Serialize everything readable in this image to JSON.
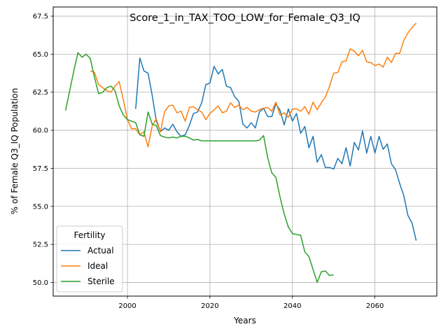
{
  "chart_data": {
    "type": "line",
    "title": "Score_1_in_TAX_TOO_LOW_for_Female_Q3_IQ",
    "xlabel": "Years",
    "ylabel": "% of Female Q3_IQ Population",
    "xlim": [
      1982,
      2075
    ],
    "ylim": [
      49.1,
      68.1
    ],
    "x_ticks": [
      2000,
      2020,
      2040,
      2060
    ],
    "y_ticks": [
      50.0,
      52.5,
      55.0,
      57.5,
      60.0,
      62.5,
      65.0,
      67.5
    ],
    "grid": true,
    "legend": {
      "title": "Fertility",
      "placement": "bottom-left"
    },
    "series": [
      {
        "name": "Actual",
        "color": "#1f77b4",
        "x": [
          2002,
          2003,
          2004,
          2005,
          2006,
          2007,
          2008,
          2009,
          2010,
          2011,
          2012,
          2013,
          2014,
          2015,
          2016,
          2017,
          2018,
          2019,
          2020,
          2021,
          2022,
          2023,
          2024,
          2025,
          2026,
          2027,
          2028,
          2029,
          2030,
          2031,
          2032,
          2033,
          2034,
          2035,
          2036,
          2037,
          2038,
          2039,
          2040,
          2041,
          2042,
          2043,
          2044,
          2045,
          2046,
          2047,
          2048,
          2049,
          2050,
          2051,
          2052,
          2053,
          2054,
          2055,
          2056,
          2057,
          2058,
          2059,
          2060,
          2061,
          2062,
          2063,
          2064,
          2065,
          2066,
          2067,
          2068,
          2069,
          2070
        ],
        "values": [
          61.4,
          64.75,
          63.9,
          63.75,
          62.3,
          60.6,
          59.9,
          60.15,
          60.0,
          60.4,
          59.9,
          59.6,
          59.7,
          60.3,
          61.1,
          61.2,
          61.8,
          63.0,
          63.1,
          64.2,
          63.7,
          64.0,
          62.9,
          62.8,
          62.2,
          61.9,
          60.4,
          60.15,
          60.5,
          60.15,
          61.2,
          61.45,
          60.9,
          60.9,
          61.75,
          61.3,
          60.35,
          61.4,
          60.6,
          61.1,
          59.8,
          60.25,
          58.85,
          59.6,
          57.9,
          58.4,
          57.55,
          57.55,
          57.45,
          58.15,
          57.8,
          58.85,
          57.65,
          59.2,
          58.7,
          59.95,
          58.5,
          59.6,
          58.5,
          59.6,
          58.75,
          59.1,
          57.8,
          57.4,
          56.5,
          55.7,
          54.4,
          53.9,
          52.75
        ]
      },
      {
        "name": "Ideal",
        "color": "#ff7f0e",
        "x": [
          1991,
          1992,
          1993,
          1994,
          1995,
          1996,
          1997,
          1998,
          1999,
          2000,
          2001,
          2002,
          2003,
          2004,
          2005,
          2006,
          2007,
          2008,
          2009,
          2010,
          2011,
          2012,
          2013,
          2014,
          2015,
          2016,
          2017,
          2018,
          2019,
          2020,
          2021,
          2022,
          2023,
          2024,
          2025,
          2026,
          2027,
          2028,
          2029,
          2030,
          2031,
          2032,
          2033,
          2034,
          2035,
          2036,
          2037,
          2038,
          2039,
          2040,
          2041,
          2042,
          2043,
          2044,
          2045,
          2046,
          2047,
          2048,
          2049,
          2050,
          2051,
          2052,
          2053,
          2054,
          2055,
          2056,
          2057,
          2058,
          2059,
          2060,
          2061,
          2062,
          2063,
          2064,
          2065,
          2066,
          2067,
          2068,
          2069,
          2070
        ],
        "values": [
          63.9,
          63.8,
          63.0,
          62.8,
          62.6,
          62.5,
          62.9,
          63.2,
          62.0,
          60.7,
          60.1,
          60.1,
          59.7,
          59.9,
          58.9,
          60.3,
          60.75,
          59.9,
          61.2,
          61.6,
          61.65,
          61.15,
          61.25,
          60.6,
          61.5,
          61.55,
          61.35,
          61.2,
          60.7,
          61.1,
          61.35,
          61.6,
          61.15,
          61.25,
          61.8,
          61.5,
          61.65,
          61.35,
          61.5,
          61.25,
          61.2,
          61.35,
          61.45,
          61.5,
          61.25,
          61.85,
          61.0,
          61.15,
          60.85,
          61.4,
          61.4,
          61.25,
          61.55,
          61.05,
          61.85,
          61.35,
          61.8,
          62.2,
          62.9,
          63.75,
          63.8,
          64.5,
          64.55,
          65.35,
          65.2,
          64.9,
          65.25,
          64.5,
          64.45,
          64.25,
          64.35,
          64.15,
          64.8,
          64.45,
          65.05,
          65.05,
          65.9,
          66.4,
          66.75,
          67.05
        ]
      },
      {
        "name": "Sterile",
        "color": "#2ca02c",
        "x": [
          1985,
          1986,
          1987,
          1988,
          1989,
          1990,
          1991,
          1992,
          1993,
          1994,
          1995,
          1996,
          1997,
          1998,
          1999,
          2000,
          2001,
          2002,
          2003,
          2004,
          2005,
          2006,
          2007,
          2008,
          2009,
          2010,
          2011,
          2012,
          2013,
          2014,
          2015,
          2016,
          2017,
          2018,
          2019,
          2020,
          2021,
          2022,
          2023,
          2024,
          2025,
          2026,
          2027,
          2028,
          2029,
          2030,
          2031,
          2032,
          2033,
          2034,
          2035,
          2036,
          2037,
          2038,
          2039,
          2040,
          2041,
          2042,
          2043,
          2044,
          2045,
          2046,
          2047,
          2048,
          2049,
          2050
        ],
        "values": [
          61.3,
          62.6,
          63.9,
          65.1,
          64.8,
          65.0,
          64.7,
          63.5,
          62.4,
          62.5,
          62.8,
          62.9,
          62.6,
          61.6,
          61.0,
          60.7,
          60.6,
          60.5,
          59.7,
          59.6,
          61.2,
          60.4,
          60.3,
          59.65,
          59.55,
          59.5,
          59.55,
          59.5,
          59.6,
          59.6,
          59.5,
          59.35,
          59.4,
          59.3,
          59.3,
          59.3,
          59.3,
          59.3,
          59.3,
          59.3,
          59.3,
          59.3,
          59.3,
          59.3,
          59.3,
          59.3,
          59.3,
          59.35,
          59.65,
          58.2,
          57.2,
          56.9,
          55.6,
          54.5,
          53.65,
          53.2,
          53.15,
          53.1,
          52.0,
          51.7,
          50.85,
          50.0,
          50.7,
          50.75,
          50.45,
          50.5
        ]
      }
    ]
  }
}
